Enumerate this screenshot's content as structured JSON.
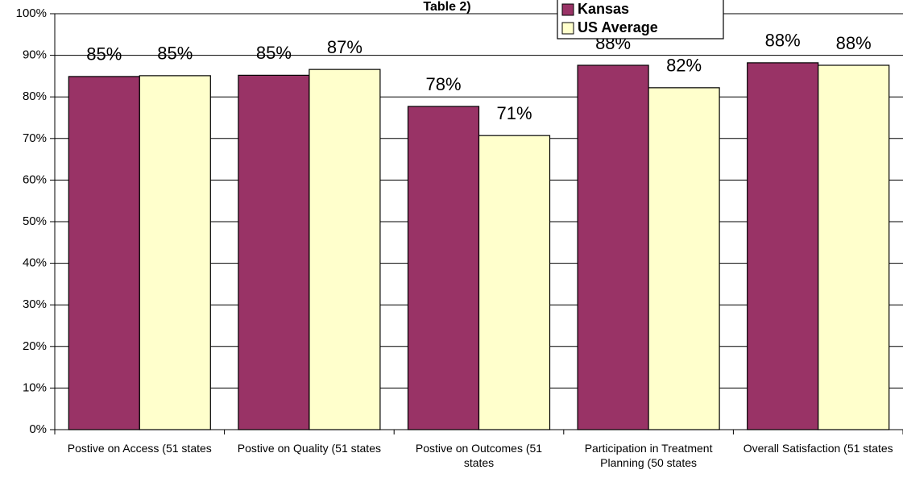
{
  "chart_data": {
    "type": "bar",
    "title": "Table 2)",
    "categories": [
      "Postive on Access (51 states",
      "Postive on Quality (51 states",
      "Postive on Outcomes (51 states",
      "Participation in Treatment Planning (50 states",
      "Overall Satisfaction (51 states"
    ],
    "series": [
      {
        "name": "Kansas",
        "color": "#993366",
        "values": [
          84.9,
          85.2,
          77.7,
          87.6,
          88.2
        ],
        "value_labels": [
          "85%",
          "85%",
          "78%",
          "88%",
          "88%"
        ]
      },
      {
        "name": "US Average",
        "color": "#ffffcc",
        "values": [
          85.1,
          86.6,
          70.7,
          82.2,
          87.6
        ],
        "value_labels": [
          "85%",
          "87%",
          "71%",
          "82%",
          "88%"
        ]
      }
    ],
    "ylim": [
      0,
      100
    ],
    "yticks": [
      {
        "value": 0,
        "label": "0%"
      },
      {
        "value": 10,
        "label": "10%"
      },
      {
        "value": 20,
        "label": "20%"
      },
      {
        "value": 30,
        "label": "30%"
      },
      {
        "value": 40,
        "label": "40%"
      },
      {
        "value": 50,
        "label": "50%"
      },
      {
        "value": 60,
        "label": "60%"
      },
      {
        "value": 70,
        "label": "70%"
      },
      {
        "value": 80,
        "label": "80%"
      },
      {
        "value": 90,
        "label": "90%"
      },
      {
        "value": 100,
        "label": "100%"
      }
    ],
    "grid": true,
    "legend": "top"
  }
}
